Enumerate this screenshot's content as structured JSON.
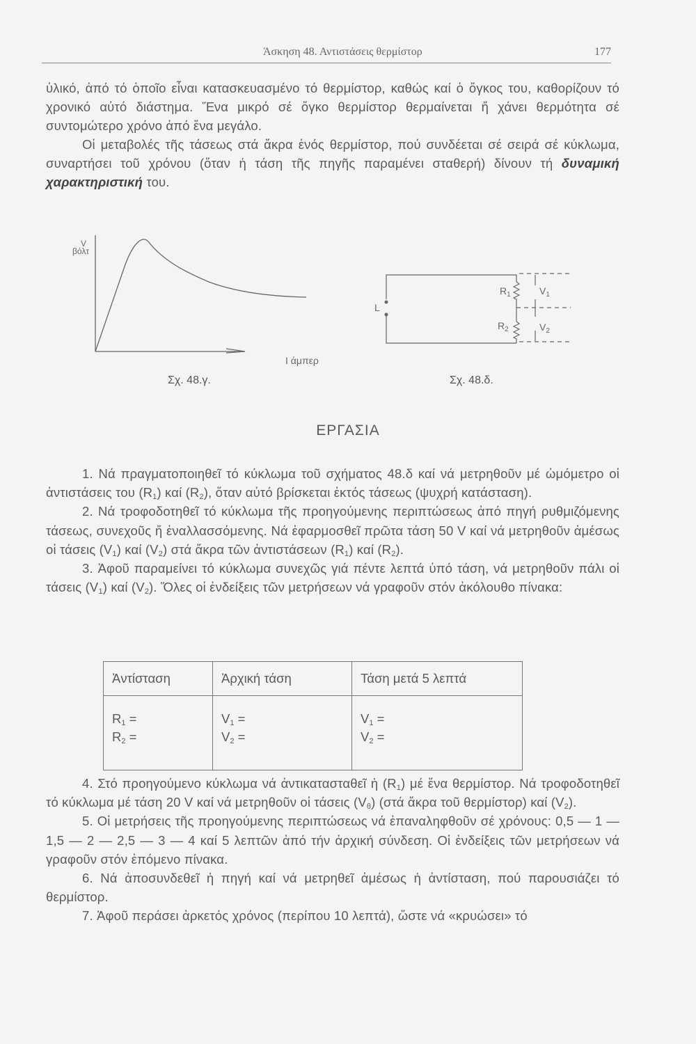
{
  "header": {
    "title": "Άσκηση 48. Αντιστάσεις θερμίστορ",
    "page_number": "177"
  },
  "intro": [
    [
      {
        "t": "ὑλικό, ἀπό τό ὁποῖο εἶναι κατασκευασμένο τό θερμίστορ, καθώς καί ὁ ὄγκος του, καθορίζουν τό χρονικό αὐτό διάστημα. Ἕνα μικρό σέ ὄγκο θερμίστορ θερμαίνεται ἤ χάνει θερμότητα σέ συντομώτερο χρόνο ἀπό ἕνα μεγάλο."
      }
    ],
    [
      {
        "t": "Οἱ μεταβολές τῆς τάσεως στά ἄκρα ἑνός θερμίστορ, πού συνδέεται σέ σειρά σέ κύκλωμα, συναρτήσει τοῦ χρόνου (ὅταν ἡ τάση τῆς πηγῆς παραμένει σταθερή) δίνουν τή "
      },
      {
        "t": "δυναμική χαρακτηριστική",
        "bold": true
      },
      {
        "t": " του."
      }
    ]
  ],
  "figure_c": {
    "y_label_symbol": "V",
    "y_label_unit": "βόλτ",
    "x_label": "I άμπερ",
    "caption": "Σχ. 48.γ."
  },
  "figure_d": {
    "source_label": "L",
    "r1": "R",
    "r1_sub": "1",
    "r2": "R",
    "r2_sub": "2",
    "v1": "V",
    "v1_sub": "1",
    "v2": "V",
    "v2_sub": "2",
    "caption": "Σχ. 48.δ."
  },
  "section_title": "ΕΡΓΑΣΙΑ",
  "tasks_a": [
    [
      {
        "t": "1. Νά πραγματοποιηθεῖ τό κύκλωμα τοῦ σχήματος 48.δ καί νά μετρηθοῦν μέ ὠμόμετρο οἱ ἀντιστάσεις του (R"
      },
      {
        "t": "1",
        "sub": true
      },
      {
        "t": ") καί (R"
      },
      {
        "t": "2",
        "sub": true
      },
      {
        "t": "), ὅταν αὐτό βρίσκεται ἐκτός τάσεως (ψυχρή κατάσταση)."
      }
    ],
    [
      {
        "t": "2. Νά τροφοδοτηθεῖ τό κύκλωμα τῆς προηγούμενης περιπτώσεως ἀπό πηγή ρυθμιζόμενης τάσεως, συνεχοῦς ἤ ἐναλλασσόμενης. Νά ἐφαρμοσθεῖ πρῶτα τάση 50 V καί νά μετρηθοῦν ἀμέσως οἱ τάσεις (V"
      },
      {
        "t": "1",
        "sub": true
      },
      {
        "t": ") καί (V"
      },
      {
        "t": "2",
        "sub": true
      },
      {
        "t": ") στά ἄκρα τῶν ἀντιστάσεων (R"
      },
      {
        "t": "1",
        "sub": true
      },
      {
        "t": ") καί (R"
      },
      {
        "t": "2",
        "sub": true
      },
      {
        "t": ")."
      }
    ],
    [
      {
        "t": "3. Ἀφοῦ παραμείνει τό κύκλωμα συνεχῶς γιά πέντε λεπτά ὑπό τάση, νά μετρηθοῦν πάλι οἱ τάσεις (V"
      },
      {
        "t": "1",
        "sub": true
      },
      {
        "t": ") καί (V"
      },
      {
        "t": "2",
        "sub": true
      },
      {
        "t": "). Ὅλες οἱ ἐνδείξεις τῶν μετρήσεων νά γραφοῦν στόν ἀκόλουθο πίνακα:"
      }
    ]
  ],
  "table": {
    "headers": [
      "Ἀντίσταση",
      "Ἀρχική τάση",
      "Τάση μετά 5 λεπτά"
    ],
    "rows": [
      [
        {
          "s": "R",
          "sub": "1",
          "e": " ="
        },
        {
          "s": "V",
          "sub": "1",
          "e": " ="
        },
        {
          "s": "V",
          "sub": "1",
          "e": " ="
        }
      ],
      [
        {
          "s": "R",
          "sub": "2",
          "e": " ="
        },
        {
          "s": "V",
          "sub": "2",
          "e": " ="
        },
        {
          "s": "V",
          "sub": "2",
          "e": " ="
        }
      ]
    ]
  },
  "tasks_b": [
    [
      {
        "t": "4. Στό προηγούμενο κύκλωμα νά ἀντικατασταθεῖ ἡ (R"
      },
      {
        "t": "1",
        "sub": true
      },
      {
        "t": ") μέ ἕνα θερμίστορ. Νά τροφοδοτηθεῖ τό κύκλωμα μέ τάση 20 V καί νά μετρηθοῦν οἱ τάσεις (V"
      },
      {
        "t": "θ",
        "sub": true
      },
      {
        "t": ") (στά ἄκρα τοῦ θερμίστορ) καί (V"
      },
      {
        "t": "2",
        "sub": true
      },
      {
        "t": ")."
      }
    ],
    [
      {
        "t": "5. Οἱ μετρήσεις τῆς προηγούμενης περιπτώσεως νά ἐπαναληφθοῦν σέ χρόνους: 0,5 — 1 — 1,5 — 2 — 2,5 — 3 — 4 καί 5 λεπτῶν ἀπό τήν ἀρχική σύνδεση. Οἱ ἐνδείξεις τῶν μετρήσεων νά γραφοῦν στόν ἑπόμενο πίνακα."
      }
    ],
    [
      {
        "t": "6. Νά ἀποσυνδεθεῖ ἡ πηγή καί νά μετρηθεῖ ἀμέσως ἡ ἀντίσταση, πού παρουσιάζει τό θερμίστορ."
      }
    ],
    [
      {
        "t": "7. Ἀφοῦ περάσει ἀρκετός χρόνος (περίπου 10 λεπτά), ὥστε νά «κρυώσει» τό"
      }
    ]
  ]
}
